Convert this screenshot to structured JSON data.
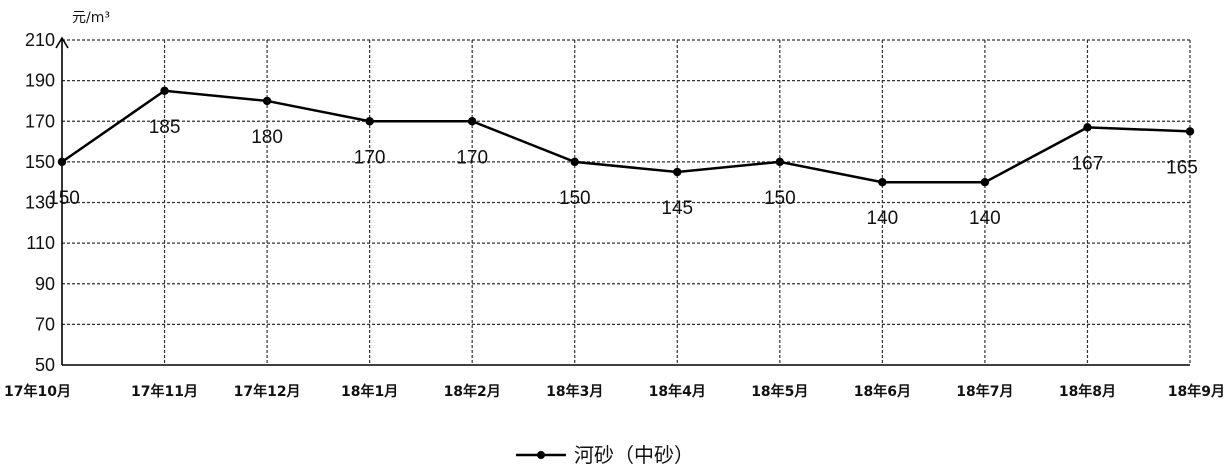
{
  "chart_data": {
    "type": "line",
    "ylabel": "元/m³",
    "ylim": [
      50,
      210
    ],
    "yticks": [
      50,
      70,
      90,
      110,
      130,
      150,
      170,
      190,
      210
    ],
    "categories": [
      "17年10月",
      "17年11月",
      "17年12月",
      "18年1月",
      "18年2月",
      "18年3月",
      "18年4月",
      "18年5月",
      "18年6月",
      "18年7月",
      "18年8月",
      "18年9月"
    ],
    "series": [
      {
        "name": "河砂（中砂）",
        "values": [
          150,
          185,
          180,
          170,
          170,
          150,
          145,
          150,
          140,
          140,
          167,
          165
        ],
        "color": "#000000"
      }
    ],
    "grid": true,
    "legend": "bottom-center"
  }
}
